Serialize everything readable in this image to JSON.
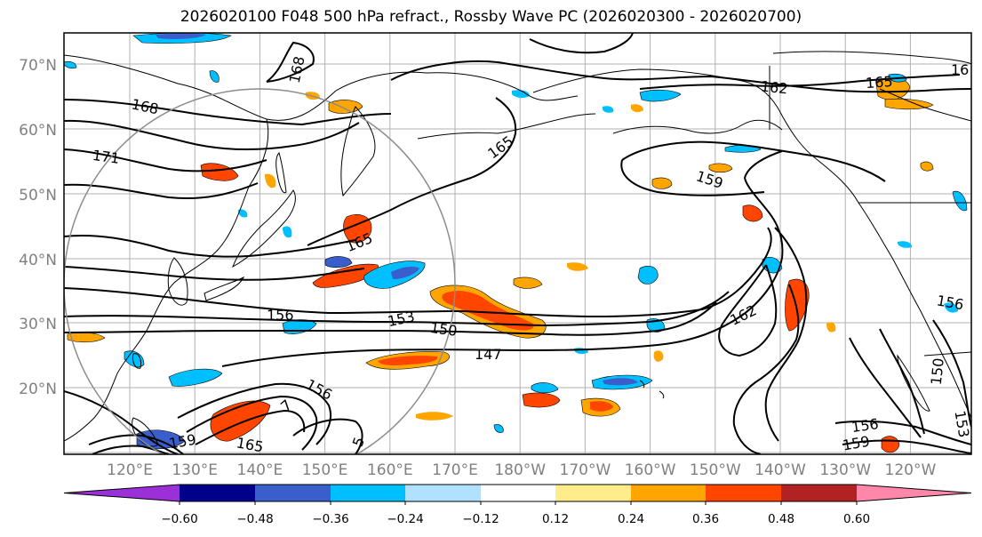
{
  "title": "2026020100 F048 500 hPa refract., Rossby Wave PC (2026020300 - 2026020700)",
  "latitude_labels": [
    "70°N",
    "60°N",
    "50°N",
    "40°N",
    "30°N",
    "20°N"
  ],
  "longitude_labels": [
    "120°E",
    "130°E",
    "140°E",
    "150°E",
    "160°E",
    "170°E",
    "180°W",
    "170°W",
    "160°W",
    "150°W",
    "140°W",
    "130°W",
    "120°W"
  ],
  "contour_labels": [
    "168",
    "168",
    "171",
    "162",
    "165",
    "16",
    "165",
    "159",
    "165",
    "156",
    "153",
    "150",
    "147",
    "162",
    "156",
    "150",
    "153",
    "156",
    "159",
    "159",
    "165",
    "156",
    "5",
    "7"
  ],
  "colorbar": {
    "colors": [
      "#9b30d9",
      "#00008b",
      "#3a5fcd",
      "#00bfff",
      "#b0e2ff",
      "#ffffff",
      "#ffec8b",
      "#ffa500",
      "#ff4500",
      "#b22222",
      "#ff88aa"
    ],
    "tick_labels": [
      "−0.60",
      "−0.48",
      "−0.36",
      "−0.24",
      "−0.12",
      "0.12",
      "0.24",
      "0.36",
      "0.48",
      "0.60"
    ]
  }
}
